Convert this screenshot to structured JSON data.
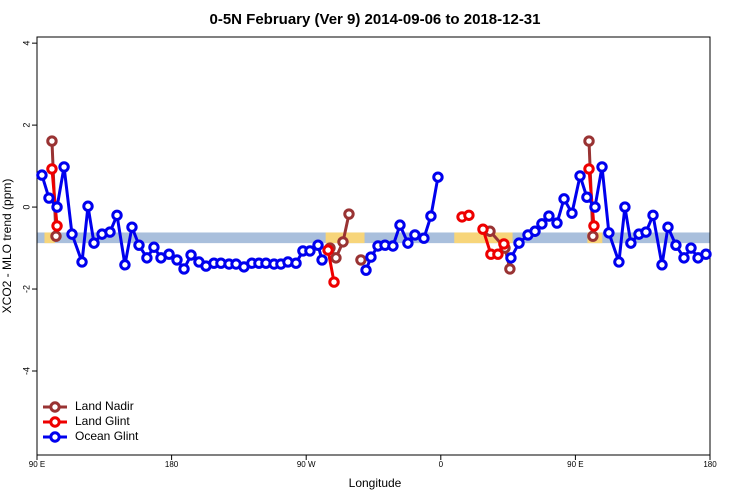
{
  "chart_data": {
    "type": "line",
    "title": "0-5N February (Ver 9)   2014-09-06 to 2018-12-31",
    "x_label": "Longitude",
    "y_label": "XCO2 - MLO trend (ppm)",
    "xlim": [
      90,
      540
    ],
    "ylim": [
      -6.05,
      4.15
    ],
    "xticks": [
      {
        "value": 90,
        "label": "90 E"
      },
      180,
      {
        "value": 270,
        "label": "90 W"
      },
      {
        "value": 360,
        "label": "0"
      },
      {
        "value": 450,
        "label": "90 E"
      },
      {
        "value": 540,
        "label": "180"
      }
    ],
    "yticks": [
      -4,
      -2,
      0,
      2,
      4
    ],
    "band": {
      "ylim": [
        -0.88,
        -0.62
      ],
      "color": "#a9bfdc",
      "highlight_color": "#f7d57a",
      "highlights": [
        [
          95,
          102
        ],
        [
          283,
          309
        ],
        [
          369,
          408
        ],
        [
          458,
          468
        ]
      ]
    },
    "legend": "bottom-left",
    "series": [
      {
        "name": "Land Nadir",
        "color": "#993333",
        "x": [
          100.0,
          102.7,
          null,
          285.9,
          289.9,
          294.6,
          298.6,
          null,
          306.6,
          null,
          392.9,
          402.9,
          406.2,
          null,
          459.1,
          461.7
        ],
        "values": [
          1.61,
          -0.71,
          null,
          -1.0,
          -1.24,
          -0.85,
          -0.17,
          null,
          -1.29,
          null,
          -0.59,
          -1.0,
          -1.51,
          null,
          1.61,
          -0.71
        ]
      },
      {
        "name": "Land Glint",
        "color": "#ee0000",
        "x": [
          100.0,
          103.4,
          null,
          284.6,
          288.6,
          null,
          374.2,
          378.8,
          null,
          388.2,
          393.5,
          398.2,
          402.2,
          null,
          459.1,
          462.4
        ],
        "values": [
          0.93,
          -0.46,
          null,
          -1.05,
          -1.83,
          null,
          -0.24,
          -0.2,
          null,
          -0.54,
          -1.15,
          -1.15,
          -0.9,
          null,
          0.93,
          -0.46
        ]
      },
      {
        "name": "Ocean Glint",
        "color": "#0000ee",
        "x": [
          93.3,
          98.0,
          103.4,
          108.1,
          113.4,
          120.1,
          124.1,
          128.1,
          133.5,
          138.8,
          143.5,
          148.8,
          153.5,
          158.2,
          163.5,
          168.2,
          172.9,
          178.3,
          183.6,
          188.3,
          193.0,
          198.3,
          203.0,
          208.3,
          213.0,
          218.4,
          223.1,
          228.4,
          233.7,
          238.4,
          243.1,
          248.5,
          253.1,
          257.8,
          263.2,
          267.8,
          272.5,
          277.9,
          280.6,
          null,
          310.0,
          313.3,
          318.0,
          322.7,
          328.0,
          332.7,
          338.0,
          342.7,
          348.7,
          353.4,
          358.1,
          null,
          406.9,
          412.3,
          418.3,
          423.0,
          427.6,
          432.3,
          437.7,
          442.4,
          447.7,
          453.1,
          457.7,
          463.1,
          467.8,
          472.4,
          479.1,
          483.1,
          487.1,
          492.5,
          497.2,
          501.9,
          507.9,
          511.9,
          517.2,
          522.6,
          527.3,
          532.0,
          537.3
        ],
        "values": [
          0.78,
          0.22,
          0,
          0.98,
          -0.66,
          -1.34,
          0.02,
          -0.88,
          -0.66,
          -0.61,
          -0.2,
          -1.41,
          -0.49,
          -0.93,
          -1.24,
          -0.98,
          -1.24,
          -1.15,
          -1.29,
          -1.51,
          -1.17,
          -1.34,
          -1.44,
          -1.37,
          -1.37,
          -1.39,
          -1.39,
          -1.46,
          -1.37,
          -1.37,
          -1.37,
          -1.39,
          -1.39,
          -1.34,
          -1.37,
          -1.07,
          -1.07,
          -0.93,
          -1.29,
          null,
          -1.54,
          -1.22,
          -0.95,
          -0.93,
          -0.95,
          -0.44,
          -0.88,
          -0.68,
          -0.76,
          -0.22,
          0.73,
          null,
          -1.24,
          -0.88,
          -0.68,
          -0.59,
          -0.41,
          -0.22,
          -0.39,
          0.2,
          -0.15,
          0.76,
          0.24,
          0,
          0.98,
          -0.63,
          -1.34,
          0,
          -0.88,
          -0.66,
          -0.61,
          -0.2,
          -1.41,
          -0.49,
          -0.93,
          -1.24,
          -1.0,
          -1.24,
          -1.15
        ]
      }
    ]
  }
}
